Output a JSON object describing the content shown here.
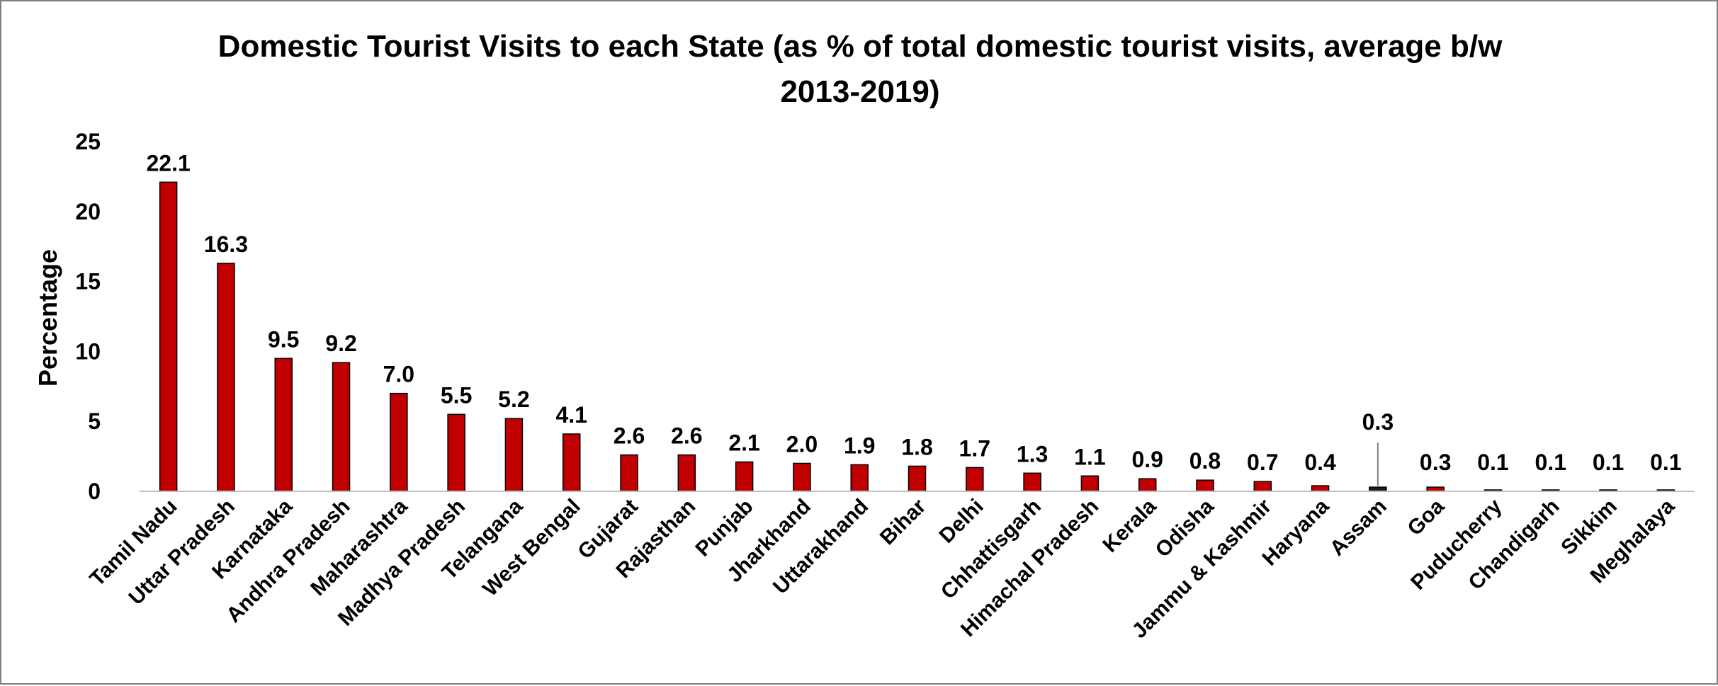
{
  "chart_data": {
    "type": "bar",
    "title": "Domestic Tourist Visits to each State (as % of total domestic tourist visits, average b/w 2013-2019)",
    "title_lines": [
      "Domestic Tourist Visits to each State (as % of total domestic tourist visits, average b/w",
      "2013-2019)"
    ],
    "xlabel": "",
    "ylabel": "Percentage",
    "ylim": [
      0,
      25
    ],
    "yticks": [
      "0",
      "5",
      "10",
      "15",
      "20",
      "25"
    ],
    "grid": false,
    "legend": "none",
    "categories": [
      "Tamil Nadu",
      "Uttar Pradesh",
      "Karnataka",
      "Andhra Pradesh",
      "Maharashtra",
      "Madhya Pradesh",
      "Telangana",
      "West Bengal",
      "Gujarat",
      "Rajasthan",
      "Punjab",
      "Jharkhand",
      "Uttarakhand",
      "Bihar",
      "Delhi",
      "Chhattisgarh",
      "Himachal Pradesh",
      "Kerala",
      "Odisha",
      "Jammu & Kashmir",
      "Haryana",
      "Assam",
      "Goa",
      "Puducherry",
      "Chandigarh",
      "Sikkim",
      "Meghalaya"
    ],
    "values": [
      22.1,
      16.3,
      9.5,
      9.2,
      7.0,
      5.5,
      5.2,
      4.1,
      2.6,
      2.6,
      2.1,
      2.0,
      1.9,
      1.8,
      1.7,
      1.3,
      1.1,
      0.9,
      0.8,
      0.7,
      0.4,
      0.3,
      0.3,
      0.1,
      0.1,
      0.1,
      0.1
    ],
    "value_labels": [
      "22.1",
      "16.3",
      "9.5",
      "9.2",
      "7.0",
      "5.5",
      "5.2",
      "4.1",
      "2.6",
      "2.6",
      "2.1",
      "2.0",
      "1.9",
      "1.8",
      "1.7",
      "1.3",
      "1.1",
      "0.9",
      "0.8",
      "0.7",
      "0.4",
      "0.3",
      "0.3",
      "0.1",
      "0.1",
      "0.1",
      "0.1"
    ],
    "highlight_category": "Assam",
    "colors": {
      "bar": "#c00000",
      "highlight_bar": "#1a1a1a",
      "bar_outline": "#000000",
      "axis": "#bfbfbf",
      "leader": "#7f7f7f"
    }
  }
}
